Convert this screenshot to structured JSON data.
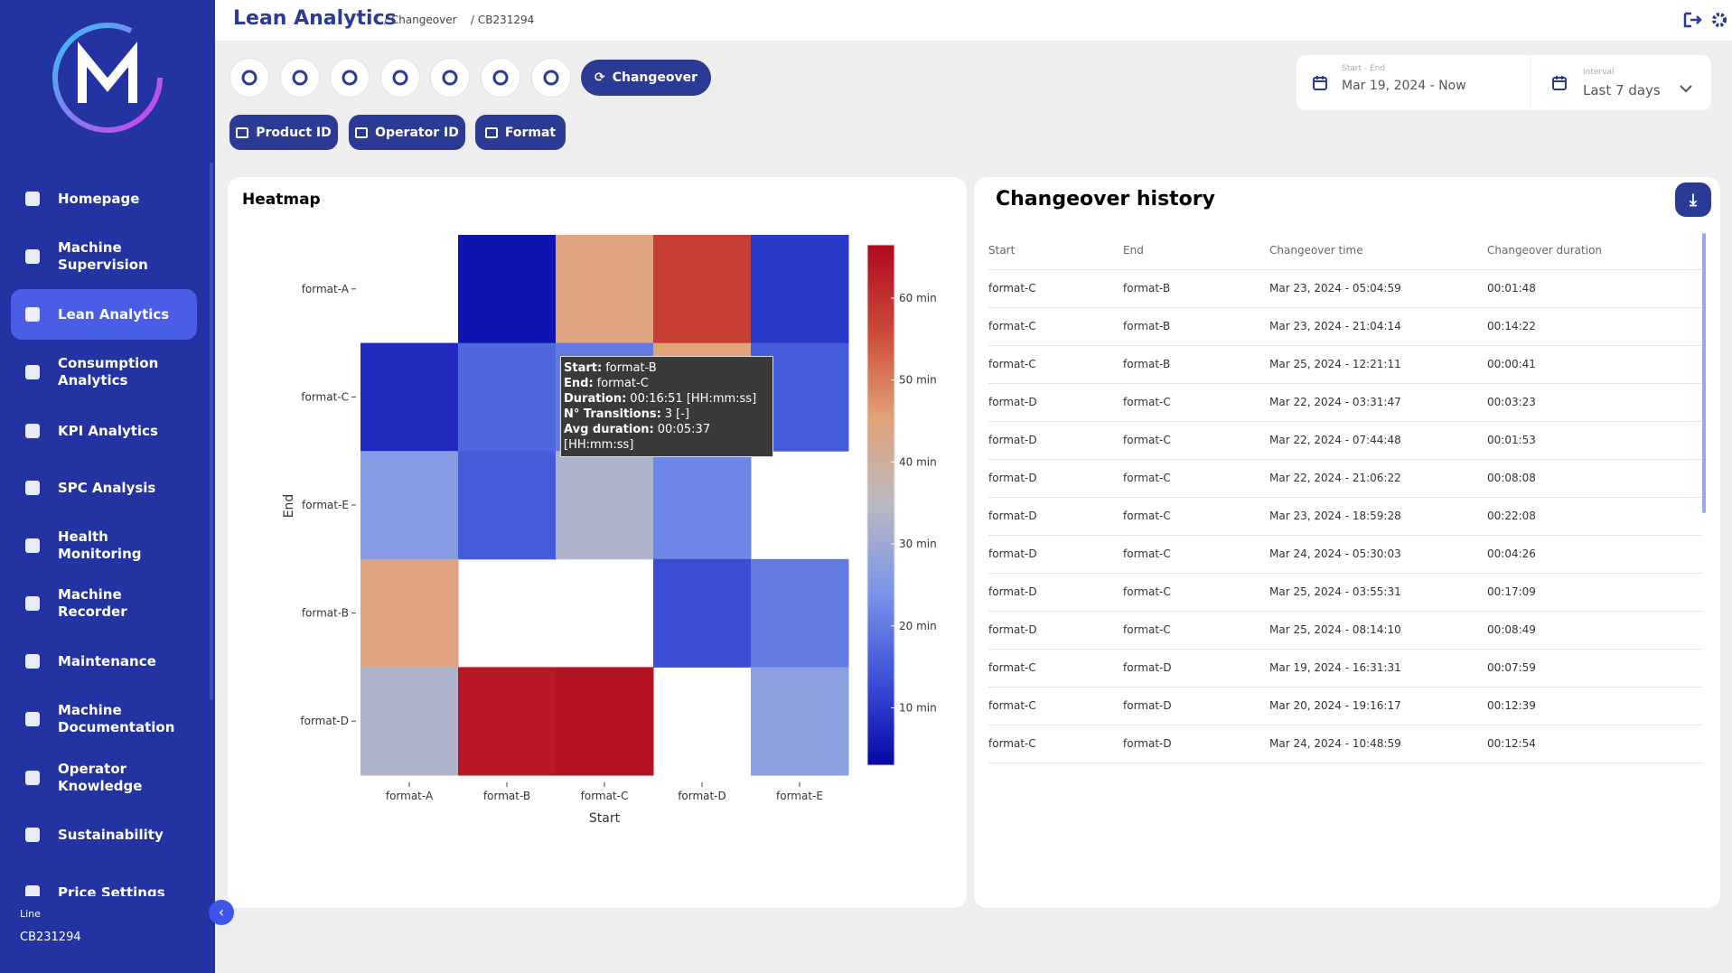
{
  "header": {
    "title": "Lean Analytics",
    "breadcrumb": [
      "/ Changeover",
      "/ CB231294"
    ]
  },
  "sidebar": {
    "nav": [
      "Homepage",
      "Machine Supervision",
      "Lean Analytics",
      "Consumption Analytics",
      "KPI Analytics",
      "SPC Analysis",
      "Health Monitoring",
      "Machine Recorder",
      "Maintenance",
      "Machine Documentation",
      "Operator Knowledge",
      "Sustainability",
      "Price Settings"
    ],
    "active": 2,
    "line_label": "Line",
    "line_value": "CB231294"
  },
  "toolbar": {
    "active_tab": "Changeover",
    "filters": [
      "Product ID",
      "Operator ID",
      "Format"
    ]
  },
  "date_range": {
    "label": "Start - End",
    "value": "Mar 19, 2024 - Now"
  },
  "interval": {
    "label": "Interval",
    "value": "Last 7 days"
  },
  "chart_data": {
    "type": "heatmap",
    "title": "Heatmap",
    "x_label": "Start",
    "y_label": "End",
    "x": [
      "format-A",
      "format-B",
      "format-C",
      "format-D",
      "format-E"
    ],
    "y": [
      "format-A",
      "format-C",
      "format-E",
      "format-B",
      "format-D"
    ],
    "values": [
      [
        null,
        5,
        44,
        58,
        10
      ],
      [
        8,
        17,
        20,
        45,
        15
      ],
      [
        26,
        15,
        33,
        22,
        null
      ],
      [
        44,
        null,
        null,
        13,
        20
      ],
      [
        33,
        64,
        65,
        null,
        27
      ]
    ],
    "zlim": [
      3,
      66.5
    ],
    "zticks": [
      {
        "value": 10,
        "label": "10 min"
      },
      {
        "value": 20,
        "label": "20 min"
      },
      {
        "value": 30,
        "label": "30 min"
      },
      {
        "value": 40,
        "label": "40 min"
      },
      {
        "value": 50,
        "label": "50 min"
      },
      {
        "value": 60,
        "label": "60 min"
      }
    ],
    "colorscale": [
      "#0606a6",
      "#3c52d8",
      "#7a95ea",
      "#b9b9c2",
      "#e3a277",
      "#cc4a38",
      "#b0081e"
    ],
    "tooltip": [
      {
        "key": "Start:",
        "text": "format-B"
      },
      {
        "key": "End:",
        "text": "format-C"
      },
      {
        "key": "Duration:",
        "text": "00:16:51 [HH:mm:ss]"
      },
      {
        "key": "N° Transitions:",
        "text": "3 [-]"
      },
      {
        "key": "Avg duration:",
        "text": "00:05:37 [HH:mm:ss]"
      }
    ]
  },
  "history": {
    "title": "Changeover history",
    "columns": [
      "Start",
      "End",
      "Changeover time",
      "Changeover duration"
    ],
    "rows": [
      [
        "format-C",
        "format-B",
        "Mar 23, 2024 - 05:04:59",
        "00:01:48"
      ],
      [
        "format-C",
        "format-B",
        "Mar 23, 2024 - 21:04:14",
        "00:14:22"
      ],
      [
        "format-C",
        "format-B",
        "Mar 25, 2024 - 12:21:11",
        "00:00:41"
      ],
      [
        "format-D",
        "format-C",
        "Mar 22, 2024 - 03:31:47",
        "00:03:23"
      ],
      [
        "format-D",
        "format-C",
        "Mar 22, 2024 - 07:44:48",
        "00:01:53"
      ],
      [
        "format-D",
        "format-C",
        "Mar 22, 2024 - 21:06:22",
        "00:08:08"
      ],
      [
        "format-D",
        "format-C",
        "Mar 23, 2024 - 18:59:28",
        "00:22:08"
      ],
      [
        "format-D",
        "format-C",
        "Mar 24, 2024 - 05:30:03",
        "00:04:26"
      ],
      [
        "format-D",
        "format-C",
        "Mar 25, 2024 - 03:55:31",
        "00:17:09"
      ],
      [
        "format-D",
        "format-C",
        "Mar 25, 2024 - 08:14:10",
        "00:08:49"
      ],
      [
        "format-C",
        "format-D",
        "Mar 19, 2024 - 16:31:31",
        "00:07:59"
      ],
      [
        "format-C",
        "format-D",
        "Mar 20, 2024 - 19:16:17",
        "00:12:39"
      ],
      [
        "format-C",
        "format-D",
        "Mar 24, 2024 - 10:48:59",
        "00:12:54"
      ]
    ]
  }
}
